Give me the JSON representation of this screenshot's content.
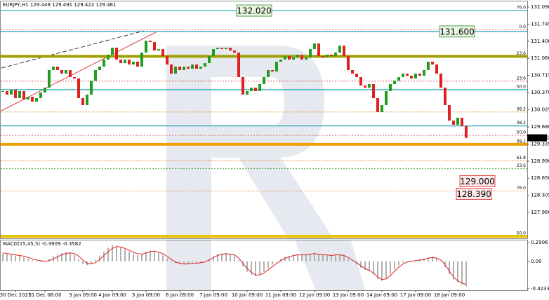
{
  "chart_data": {
    "type": "candlestick",
    "title": "EURJPY,H1 129.449 129.491 129.422 129.461",
    "categories": [
      null,
      null,
      null,
      "30 Dec 2021",
      null,
      null,
      null,
      null,
      null,
      null,
      "31 Dec 06:00",
      null,
      null,
      null,
      null,
      null,
      null,
      null,
      null,
      "3 Jan 09:00",
      null,
      null,
      null,
      null,
      null,
      null,
      "4 Jan 09:00",
      null,
      null,
      null,
      null,
      null,
      null,
      null,
      "5 Jan 09:00",
      null,
      null,
      null,
      null,
      null,
      null,
      null,
      "6 Jan 09:00",
      null,
      null,
      null,
      null,
      null,
      null,
      null,
      "7 Jan 09:00",
      null,
      null,
      null,
      null,
      null,
      null,
      null,
      "10 Jan 09:00",
      null,
      null,
      null,
      null,
      null,
      null,
      null,
      "11 Jan 09:00",
      null,
      null,
      null,
      null,
      null,
      null,
      null,
      "12 Jan 09:00",
      null,
      null,
      null,
      null,
      null,
      null,
      null,
      "13 Jan 09:00",
      null,
      null,
      null,
      null,
      null,
      null,
      null,
      "14 Jan 09:00",
      null,
      null,
      null,
      null,
      null,
      null,
      null,
      "17 Jan 09:00",
      null,
      null,
      null,
      null,
      null,
      null,
      null,
      "18 Jan 09:00",
      null,
      null,
      null,
      null
    ],
    "values": [
      130.4,
      130.33,
      130.428,
      130.259,
      130.4,
      130.231,
      130.287,
      130.189,
      130.259,
      130.372,
      130.47,
      130.823,
      130.893,
      130.823,
      130.752,
      130.823,
      130.682,
      130.654,
      130.259,
      130.118,
      130.33,
      130.611,
      130.823,
      130.893,
      131.034,
      131.132,
      131.273,
      131.034,
      130.963,
      131.034,
      130.935,
      130.992,
      130.893,
      131.175,
      131.414,
      131.386,
      131.217,
      131.245,
      131.104,
      130.935,
      130.752,
      130.893,
      130.823,
      130.893,
      130.851,
      130.935,
      130.851,
      130.893,
      130.963,
      131.104,
      131.245,
      131.273,
      131.245,
      131.273,
      131.217,
      131.175,
      130.682,
      130.33,
      130.4,
      130.47,
      130.4,
      130.541,
      130.682,
      130.823,
      130.794,
      130.992,
      131.034,
      131.104,
      131.034,
      131.076,
      131.132,
      131.034,
      131.076,
      131.245,
      131.358,
      131.104,
      131.076,
      131.132,
      131.104,
      131.175,
      131.316,
      131.104,
      130.823,
      130.752,
      130.682,
      130.513,
      130.47,
      130.541,
      130.259,
      129.977,
      130.118,
      130.4,
      130.541,
      130.611,
      130.682,
      130.752,
      130.71,
      130.654,
      130.752,
      130.71,
      130.823,
      130.992,
      130.935,
      130.752,
      130.47,
      130.118,
      129.808,
      129.724,
      129.865,
      129.696,
      129.461
    ],
    "up_color": "#1f9e1f",
    "down_color": "#e02020",
    "last_price_color": "#000000",
    "ylim": [
      127.44,
      132.19
    ],
    "yticks": [
      {
        "value": 132.09,
        "label": "132.090"
      },
      {
        "value": 131.745,
        "label": "131.745"
      },
      {
        "value": 131.4,
        "label": "131.400"
      },
      {
        "value": 131.06,
        "label": "131.060"
      },
      {
        "value": 130.715,
        "label": "130.715"
      },
      {
        "value": 130.37,
        "label": "130.370"
      },
      {
        "value": 130.025,
        "label": "130.025"
      },
      {
        "value": 129.68,
        "label": "129.680"
      },
      {
        "value": 129.335,
        "label": "129.335"
      },
      {
        "value": 128.99,
        "label": "128.990"
      },
      {
        "value": 128.65,
        "label": "128.650"
      },
      {
        "value": 128.305,
        "label": "128.305"
      },
      {
        "value": 127.96,
        "label": "127.960"
      }
    ],
    "levels": [
      {
        "value": 132.02,
        "color": "#1aa8b8",
        "style": "solid",
        "fib": "76.0",
        "fib_color": "#e08020",
        "tag": "132.020",
        "tag_color": "#2e8b2e",
        "tag_fill": "#e6f5e0"
      },
      {
        "value": 131.63,
        "color": "#e04040",
        "style": "dotted",
        "fib": "0.0",
        "fib_color": "#e04040"
      },
      {
        "value": 131.6,
        "color": "#1aa8b8",
        "style": "solid",
        "tag": "131.600",
        "tag_color": "#2e8b2e",
        "tag_fill": "#e6f5e0"
      },
      {
        "value": 131.1,
        "color": "#a0a000",
        "style": "thick",
        "fib": "23.6",
        "fib_color": "#e08020"
      },
      {
        "value": 130.6,
        "color": "#e04040",
        "style": "dotted",
        "fib": "23.6",
        "fib_color": "#e04040"
      },
      {
        "value": 130.43,
        "color": "#1aa8b8",
        "style": "solid",
        "fib": "50.0",
        "fib_color": "#2e9e2e"
      },
      {
        "value": 129.98,
        "color": "#e08020",
        "style": "dotted",
        "fib": "38.2",
        "fib_color": "#e08020"
      },
      {
        "value": 129.7,
        "color": "#1aa8b8",
        "style": "solid",
        "fib": "38.2",
        "fib_color": "#2e9e2e"
      },
      {
        "value": 129.51,
        "color": "#e04040",
        "style": "dotted",
        "fib": "50.0",
        "fib_color": "#e04040"
      },
      {
        "value": 129.33,
        "color": "#f0a000",
        "style": "thick",
        "fib": "38.2",
        "fib_color": "#e08020"
      },
      {
        "value": 129.0,
        "color": "#e08020",
        "style": "dotted",
        "fib": "61.8",
        "fib_color": "#e08020",
        "tag": "129.000",
        "tag_color": "#e02020",
        "tag_fill": "#fde8e8"
      },
      {
        "value": 128.84,
        "color": "#2e9e2e",
        "style": "dotted",
        "fib": "23.6",
        "fib_color": "#2e9e2e"
      },
      {
        "value": 128.39,
        "color": "#e08020",
        "style": "dotted",
        "fib": "76.0",
        "fib_color": "#e08020",
        "tag": "128.390",
        "tag_color": "#e02020",
        "tag_fill": "#fde8e8"
      },
      {
        "value": 127.48,
        "color": "#e8c000",
        "style": "thick",
        "fib": "50.0",
        "fib_color": "#e08020"
      }
    ],
    "macd": {
      "title": "MACD(15,45,5) -0.3909 -0.3582",
      "hist_color": "#b0b0b0",
      "signal_color": "#e02020",
      "y2lim": [
        -0.4233,
        0.2906
      ],
      "y2ticks": [
        0.2906,
        {
          "value": 0,
          "label": "0.00"
        },
        -0.4233
      ],
      "histogram": [
        0.12,
        0.11,
        0.1,
        0.09,
        0.08,
        0.06,
        0.04,
        0.02,
        0.0,
        -0.01,
        0.0,
        0.04,
        0.08,
        0.11,
        0.13,
        0.14,
        0.14,
        0.1,
        0.03,
        -0.04,
        -0.06,
        -0.04,
        0.02,
        0.09,
        0.15,
        0.21,
        0.25,
        0.24,
        0.21,
        0.18,
        0.15,
        0.12,
        0.1,
        0.11,
        0.15,
        0.17,
        0.16,
        0.13,
        0.1,
        0.05,
        -0.01,
        -0.03,
        -0.04,
        -0.04,
        -0.04,
        -0.03,
        -0.03,
        -0.02,
        0.0,
        0.04,
        0.08,
        0.11,
        0.12,
        0.12,
        0.11,
        0.09,
        0.02,
        -0.08,
        -0.16,
        -0.21,
        -0.23,
        -0.21,
        -0.16,
        -0.1,
        -0.05,
        0.0,
        0.04,
        0.07,
        0.08,
        0.1,
        0.11,
        0.1,
        0.1,
        0.12,
        0.13,
        0.11,
        0.1,
        0.09,
        0.09,
        0.1,
        0.11,
        0.09,
        0.04,
        -0.01,
        -0.05,
        -0.1,
        -0.13,
        -0.15,
        -0.2,
        -0.27,
        -0.3,
        -0.26,
        -0.19,
        -0.12,
        -0.06,
        -0.02,
        0.0,
        0.01,
        0.02,
        0.03,
        0.04,
        0.06,
        0.07,
        0.05,
        0.0,
        -0.09,
        -0.2,
        -0.28,
        -0.32,
        -0.36,
        -0.3909
      ],
      "signal": [
        0.13,
        0.12,
        0.11,
        0.1,
        0.09,
        0.08,
        0.06,
        0.04,
        0.02,
        0.01,
        0.0,
        0.01,
        0.04,
        0.07,
        0.1,
        0.12,
        0.13,
        0.12,
        0.08,
        0.02,
        -0.03,
        -0.04,
        -0.02,
        0.03,
        0.09,
        0.15,
        0.2,
        0.23,
        0.22,
        0.2,
        0.17,
        0.14,
        0.12,
        0.11,
        0.13,
        0.15,
        0.16,
        0.14,
        0.12,
        0.08,
        0.03,
        -0.01,
        -0.03,
        -0.04,
        -0.04,
        -0.03,
        -0.03,
        -0.02,
        -0.01,
        0.02,
        0.06,
        0.09,
        0.11,
        0.12,
        0.11,
        0.1,
        0.05,
        -0.03,
        -0.11,
        -0.17,
        -0.21,
        -0.21,
        -0.18,
        -0.13,
        -0.08,
        -0.03,
        0.01,
        0.05,
        0.07,
        0.09,
        0.1,
        0.1,
        0.1,
        0.11,
        0.12,
        0.11,
        0.1,
        0.1,
        0.09,
        0.1,
        0.1,
        0.09,
        0.06,
        0.02,
        -0.02,
        -0.07,
        -0.11,
        -0.14,
        -0.18,
        -0.24,
        -0.28,
        -0.27,
        -0.22,
        -0.15,
        -0.09,
        -0.04,
        -0.01,
        0.0,
        0.01,
        0.02,
        0.03,
        0.05,
        0.06,
        0.05,
        0.02,
        -0.05,
        -0.15,
        -0.24,
        -0.3,
        -0.33,
        -0.3582
      ]
    }
  }
}
